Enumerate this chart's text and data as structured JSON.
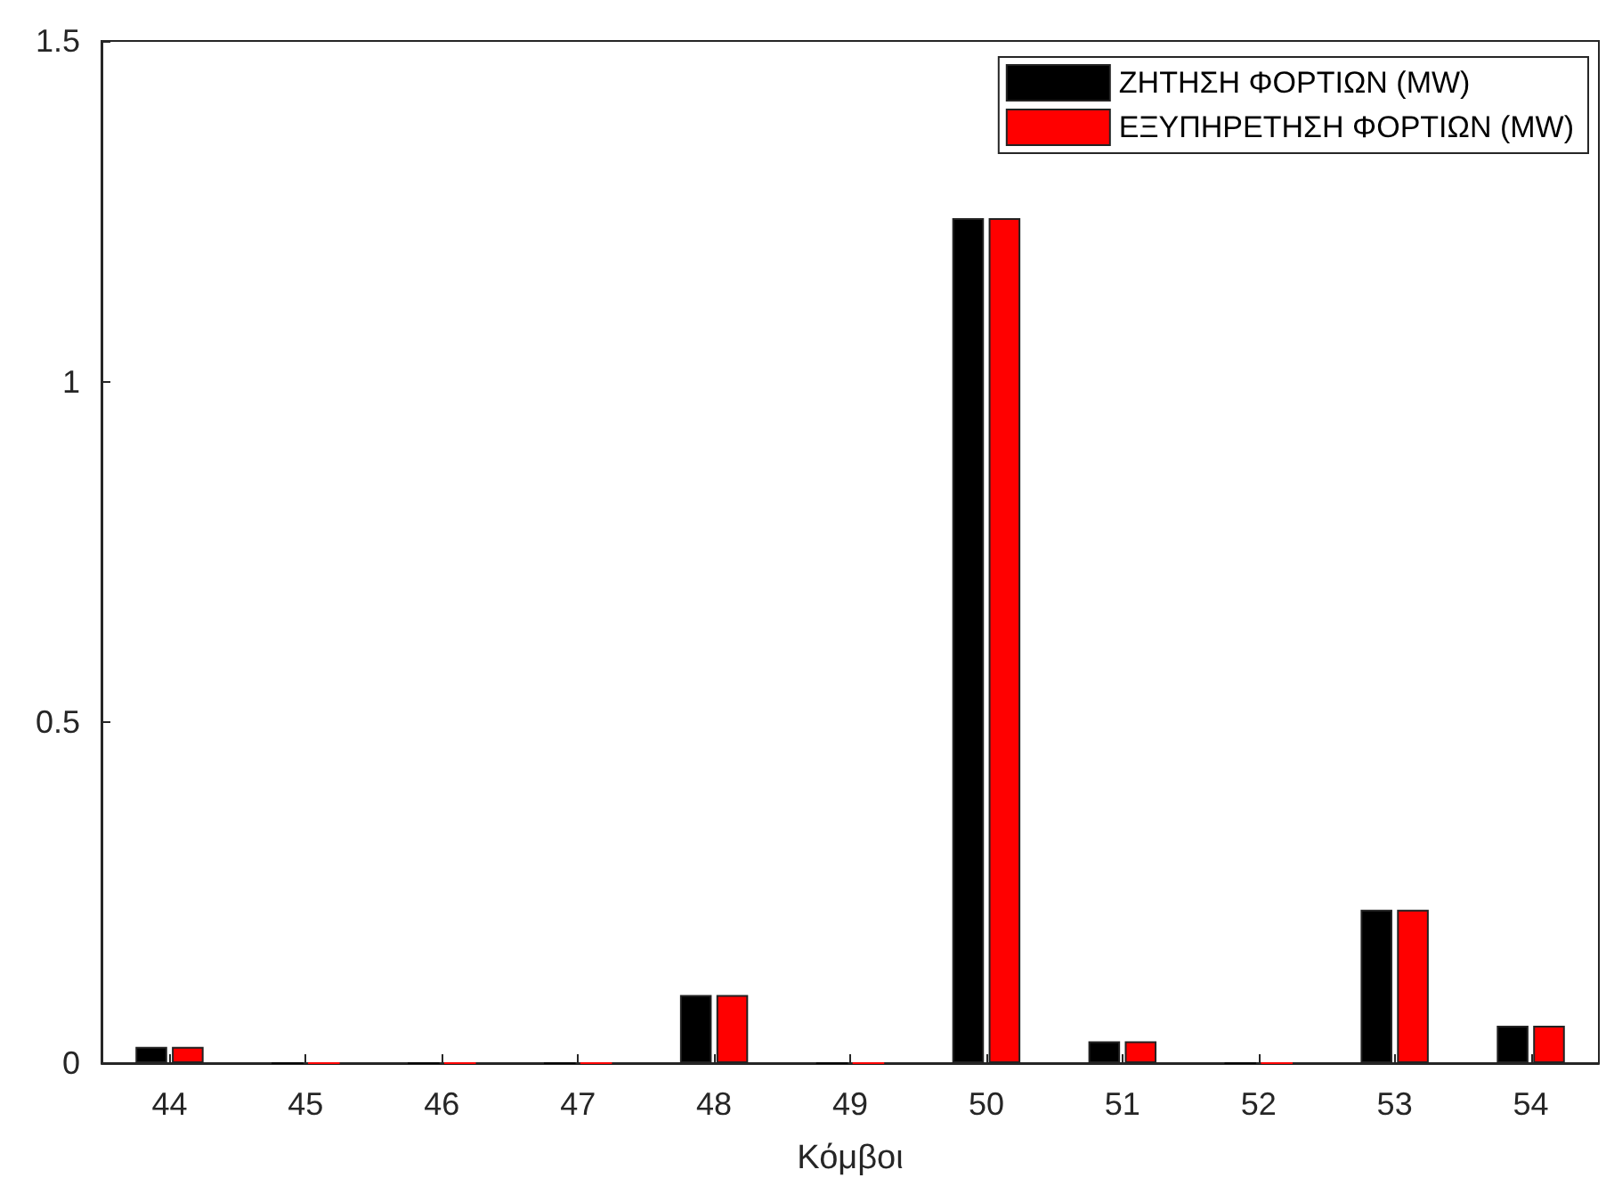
{
  "chart_data": {
    "type": "bar",
    "xlabel": "Κόμβοι",
    "categories": [
      "44",
      "45",
      "46",
      "47",
      "48",
      "49",
      "50",
      "51",
      "52",
      "53",
      "54"
    ],
    "series": [
      {
        "name": "ΖΗΤΗΣΗ ΦΟΡΤΙΩΝ (MW)",
        "color": "#000000",
        "values": [
          0.024,
          0,
          0,
          0,
          0.1,
          0,
          1.24,
          0.032,
          0,
          0.225,
          0.055
        ]
      },
      {
        "name": "ΕΞΥΠΗΡΕΤΗΣΗ ΦΟΡΤΙΩΝ (MW)",
        "color": "#ff0000",
        "values": [
          0.024,
          0,
          0,
          0,
          0.1,
          0,
          1.24,
          0.032,
          0,
          0.225,
          0.055
        ]
      }
    ],
    "ylim": [
      0,
      1.5
    ],
    "yticks": [
      0,
      0.5,
      1,
      1.5
    ],
    "grid": false,
    "legend": "top right"
  }
}
